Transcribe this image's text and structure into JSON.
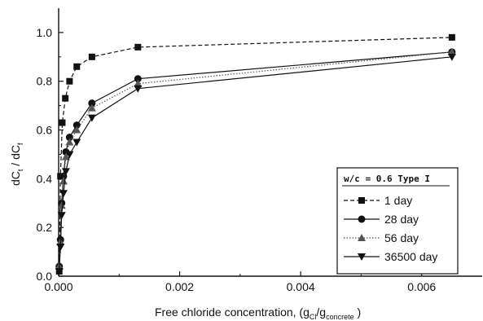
{
  "chart_data": {
    "type": "line",
    "xlabel": "Free chloride concentration, (g",
    "xlabel_sub1": "Cl",
    "xlabel_mid": "/g",
    "xlabel_sub2": "concrete",
    "xlabel_end": " )",
    "ylabel_main": "dC",
    "ylabel_sub": "t",
    "ylabel_sep": " / dC",
    "ylabel_sub2": "f",
    "xlim": [
      0.0,
      0.007
    ],
    "ylim": [
      0.0,
      1.1
    ],
    "xticks": [
      0.0,
      0.002,
      0.004,
      0.006
    ],
    "xtick_labels": [
      "0.000",
      "0.002",
      "0.004",
      "0.006"
    ],
    "yticks": [
      0.0,
      0.2,
      0.4,
      0.6,
      0.8,
      1.0
    ],
    "ytick_labels": [
      "0.0",
      "0.2",
      "0.4",
      "0.6",
      "0.8",
      "1.0"
    ],
    "legend_title": "w/c = 0.6 Type I",
    "legend_position": "right",
    "series": [
      {
        "name": "1 day",
        "marker": "square",
        "linestyle": "dash",
        "color": "#111111",
        "x": [
          1e-05,
          3e-05,
          6e-05,
          0.00011,
          0.00018,
          0.0003,
          0.00055,
          0.00131,
          0.0065
        ],
        "y": [
          0.02,
          0.41,
          0.63,
          0.73,
          0.8,
          0.86,
          0.9,
          0.94,
          0.98
        ]
      },
      {
        "name": "28 day",
        "marker": "circle",
        "linestyle": "solid",
        "color": "#111111",
        "x": [
          1e-05,
          3e-05,
          5e-05,
          8e-05,
          0.00012,
          0.00018,
          0.0003,
          0.00055,
          0.00131,
          0.0065
        ],
        "y": [
          0.04,
          0.15,
          0.3,
          0.41,
          0.51,
          0.57,
          0.62,
          0.71,
          0.81,
          0.92
        ]
      },
      {
        "name": "56 day",
        "marker": "triangle-up",
        "linestyle": "dot",
        "color": "#555555",
        "x": [
          1e-05,
          3e-05,
          5e-05,
          8e-05,
          0.00012,
          0.00018,
          0.0003,
          0.00055,
          0.00131,
          0.0065
        ],
        "y": [
          0.04,
          0.14,
          0.29,
          0.39,
          0.49,
          0.55,
          0.6,
          0.69,
          0.79,
          0.92
        ]
      },
      {
        "name": "36500 day",
        "marker": "triangle-down",
        "linestyle": "solid",
        "color": "#111111",
        "x": [
          1e-05,
          3e-05,
          5e-05,
          8e-05,
          0.00012,
          0.00018,
          0.0003,
          0.00055,
          0.00131,
          0.0065
        ],
        "y": [
          0.02,
          0.12,
          0.25,
          0.34,
          0.43,
          0.5,
          0.55,
          0.65,
          0.77,
          0.9
        ]
      }
    ]
  }
}
